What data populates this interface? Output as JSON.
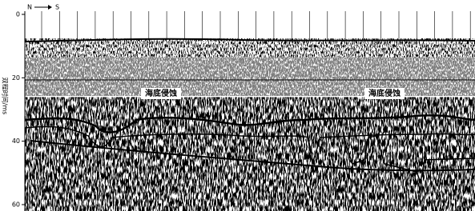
{
  "direction": {
    "start": "N",
    "end": "S"
  },
  "y_axis": {
    "label": "双程时间/ms",
    "ticks": [
      0,
      20,
      40,
      60
    ]
  },
  "annotations": [
    "海底侵蚀",
    "海底侵蚀"
  ]
}
